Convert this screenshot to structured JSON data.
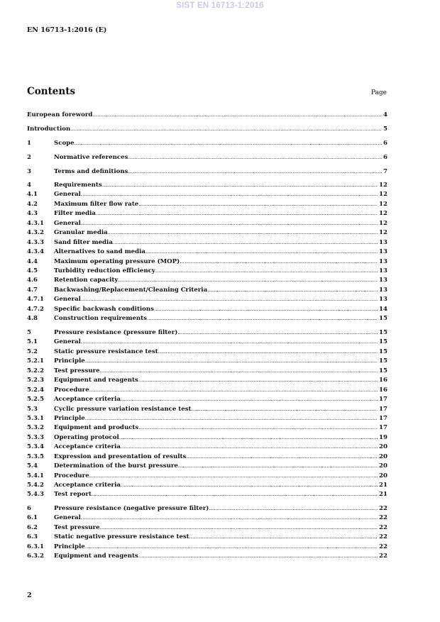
{
  "watermark": "SIST EN 16713-1:2016",
  "header": "EN 16713-1:2016 (E)",
  "contents_title": "Contents",
  "page_label": "Page",
  "footer_page_number": "2",
  "toc_groups": [
    [
      {
        "num": "",
        "title": "European foreword",
        "page": "4",
        "wide": true
      },
      {
        "num": "",
        "title": "Introduction",
        "page": "5",
        "wide": true
      },
      {
        "num": "1",
        "title": "Scope",
        "page": "6"
      },
      {
        "num": "2",
        "title": "Normative references",
        "page": "6"
      },
      {
        "num": "3",
        "title": "Terms and definitions",
        "page": "7"
      }
    ],
    [
      {
        "num": "4",
        "title": "Requirements",
        "page": "12"
      },
      {
        "num": "4.1",
        "title": "General",
        "page": "12"
      },
      {
        "num": "4.2",
        "title": "Maximum filter flow rate",
        "page": "12"
      },
      {
        "num": "4.3",
        "title": "Filter media",
        "page": "12"
      },
      {
        "num": "4.3.1",
        "title": "General",
        "page": "12"
      },
      {
        "num": "4.3.2",
        "title": "Granular media",
        "page": "12"
      },
      {
        "num": "4.3.3",
        "title": "Sand filter media",
        "page": "13"
      },
      {
        "num": "4.3.4",
        "title": "Alternatives to sand media",
        "page": "13"
      },
      {
        "num": "4.4",
        "title": "Maximum operating pressure (MOP)",
        "page": "13"
      },
      {
        "num": "4.5",
        "title": "Turbidity reduction efficiency",
        "page": "13"
      },
      {
        "num": "4.6",
        "title": "Retention capacity",
        "page": "13"
      },
      {
        "num": "4.7",
        "title": "Backwashing/Replacement/Cleaning Criteria",
        "page": "13"
      },
      {
        "num": "4.7.1",
        "title": "General",
        "page": "13"
      },
      {
        "num": "4.7.2",
        "title": "Specific backwash conditions",
        "page": "14"
      },
      {
        "num": "4.8",
        "title": "Construction requirements",
        "page": "15"
      }
    ],
    [
      {
        "num": "5",
        "title": "Pressure resistance (pressure filter)",
        "page": "15"
      },
      {
        "num": "5.1",
        "title": "General",
        "page": "15"
      },
      {
        "num": "5.2",
        "title": "Static pressure resistance test",
        "page": "15"
      },
      {
        "num": "5.2.1",
        "title": "Principle",
        "page": "15"
      },
      {
        "num": "5.2.2",
        "title": "Test pressure",
        "page": "15"
      },
      {
        "num": "5.2.3",
        "title": "Equipment and reagents",
        "page": "16"
      },
      {
        "num": "5.2.4",
        "title": "Procedure",
        "page": "16"
      },
      {
        "num": "5.2.5",
        "title": "Acceptance criteria",
        "page": "17"
      },
      {
        "num": "5.3",
        "title": "Cyclic pressure variation resistance test",
        "page": "17"
      },
      {
        "num": "5.3.1",
        "title": "Principle",
        "page": "17"
      },
      {
        "num": "5.3.2",
        "title": "Equipment and products",
        "page": "17"
      },
      {
        "num": "5.3.3",
        "title": "Operating protocol",
        "page": "19"
      },
      {
        "num": "5.3.4",
        "title": "Acceptance criteria",
        "page": "20"
      },
      {
        "num": "5.3.5",
        "title": "Expression and presentation of results",
        "page": "20"
      },
      {
        "num": "5.4",
        "title": "Determination of the burst pressure",
        "page": "20"
      },
      {
        "num": "5.4.1",
        "title": "Procedure",
        "page": "20"
      },
      {
        "num": "5.4.2",
        "title": "Acceptance criteria",
        "page": "21"
      },
      {
        "num": "5.4.3",
        "title": "Test report",
        "page": "21"
      }
    ],
    [
      {
        "num": "6",
        "title": "Pressure resistance (negative pressure filter)",
        "page": "22"
      },
      {
        "num": "6.1",
        "title": "General",
        "page": "22"
      },
      {
        "num": "6.2",
        "title": "Test pressure",
        "page": "22"
      },
      {
        "num": "6.3",
        "title": "Static negative pressure resistance test",
        "page": "22"
      },
      {
        "num": "6.3.1",
        "title": "Principle",
        "page": "22"
      },
      {
        "num": "6.3.2",
        "title": "Equipment and reagents",
        "page": "22"
      }
    ]
  ]
}
